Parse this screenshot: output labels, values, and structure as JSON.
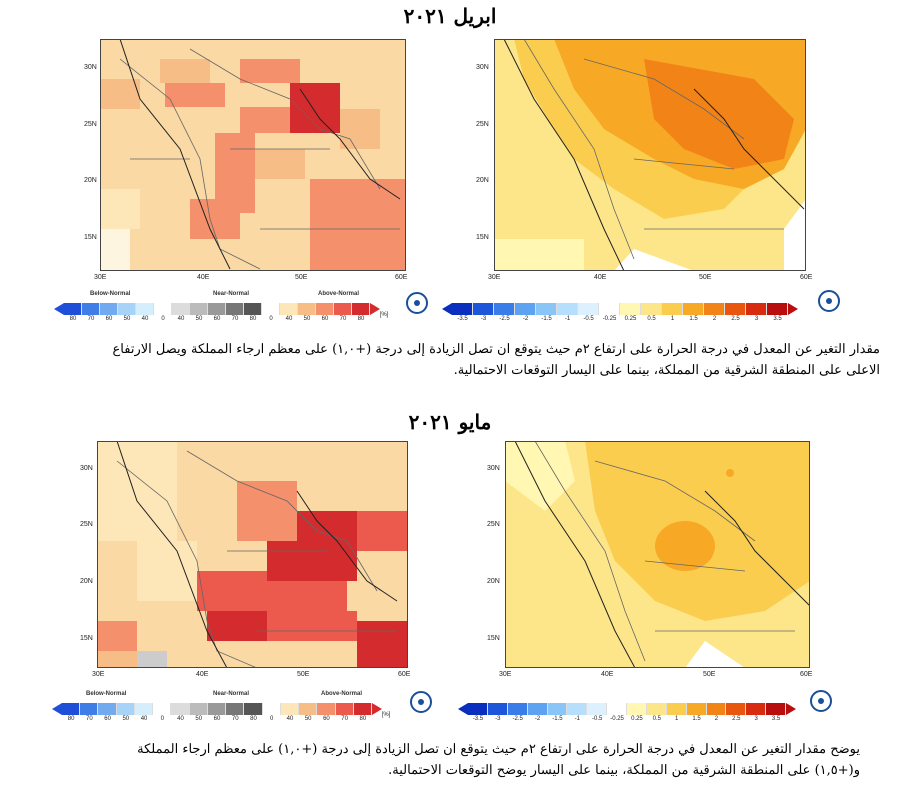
{
  "april": {
    "title": "ابريل ٢٠٢١",
    "caption_line1": "مقدار التغير عن المعدل في درجة الحرارة على ارتفاع ٢م حيث يتوقع ان تصل الزيادة إلى درجة (+١,٠) على معظم ارجاء المملكة ويصل الارتفاع",
    "caption_line2": "الاعلى على المنطقة الشرقية من المملكة، بينما على اليسار التوقعات الاحتمالية."
  },
  "may": {
    "title": "مايو ٢٠٢١",
    "caption_line1": "يوضح مقدار التغير عن المعدل في درجة الحرارة على ارتفاع ٢م حيث يتوقع ان تصل الزيادة إلى درجة (+١,٠) على معظم ارجاء المملكة",
    "caption_line2": "و(+١,٥) على المنطقة الشرقية من المملكة، بينما على اليسار يوضح التوقعات الاحتمالية."
  },
  "axes": {
    "lat_ticks": [
      "30N",
      "25N",
      "20N",
      "15N"
    ],
    "lon_ticks": [
      "30E",
      "40E",
      "50E",
      "60E"
    ]
  },
  "prob_legend": {
    "below": "Below-Normal",
    "near": "Near-Normal",
    "above": "Above-Normal",
    "values": [
      "80",
      "70",
      "60",
      "50",
      "40",
      "0",
      "40",
      "50",
      "60",
      "70",
      "80",
      "0",
      "40",
      "50",
      "60",
      "70",
      "80"
    ],
    "unit": "[%]"
  },
  "anom_legend": {
    "values": [
      "-3.5",
      "-3",
      "-2.5",
      "-2",
      "-1.5",
      "-1",
      "-0.5",
      "-0.25",
      "0.25",
      "0.5",
      "1",
      "1.5",
      "2",
      "2.5",
      "3",
      "3.5"
    ]
  },
  "colors": {
    "prob_colors": [
      "#1f4fd9",
      "#3f7ee6",
      "#72aaf0",
      "#a6d3f7",
      "#d4eefb",
      "#ffffff",
      "#dcdcdc",
      "#bbbbbb",
      "#999999",
      "#777777",
      "#555555",
      "#ffffff",
      "#fde7b8",
      "#f7bd86",
      "#f4906b",
      "#eb5a4c",
      "#d42c2e"
    ],
    "anom_colors": [
      "#0a2fbf",
      "#1e56d9",
      "#3a7ce8",
      "#5ea3f2",
      "#8ac5f8",
      "#b5dffc",
      "#dcf1fd",
      "#ffffff",
      "#fff7b2",
      "#fde68a",
      "#fbcd4f",
      "#f7a824",
      "#f28317",
      "#e8560f",
      "#d82c10",
      "#b80e0e"
    ]
  }
}
